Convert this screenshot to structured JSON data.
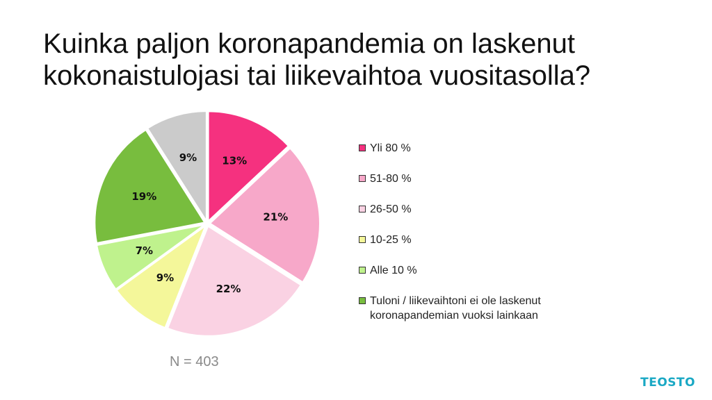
{
  "title_lines": [
    "Kuinka paljon koronapandemia on laskenut",
    "kokonaistulojasi tai liikevaihtoa vuositasolla?"
  ],
  "note": "N = 403",
  "logo": "TEOSTO",
  "chart_data": {
    "type": "pie",
    "title": "Kuinka paljon koronapandemia on laskenut kokonaistulojasi tai liikevaihtoa vuositasolla?",
    "legend_position": "right",
    "slices": [
      {
        "label": "Yli 80 %",
        "value": 13,
        "display": "13%",
        "color": "#f5317f"
      },
      {
        "label": "51-80 %",
        "value": 21,
        "display": "21%",
        "color": "#f7a8c9"
      },
      {
        "label": "26-50 %",
        "value": 22,
        "display": "22%",
        "color": "#fad2e3"
      },
      {
        "label": "10-25 %",
        "value": 9,
        "display": "9%",
        "color": "#f4f79a"
      },
      {
        "label": "Alle 10 %",
        "value": 7,
        "display": "7%",
        "color": "#bff28d"
      },
      {
        "label": "Tuloni / liikevaihtoni ei ole laskenut\nkoronapandemian vuoksi lainkaan",
        "value": 19,
        "display": "19%",
        "color": "#78bd3e"
      },
      {
        "label": "",
        "value": 9,
        "display": "9%",
        "color": "#cbcbcb"
      }
    ]
  }
}
